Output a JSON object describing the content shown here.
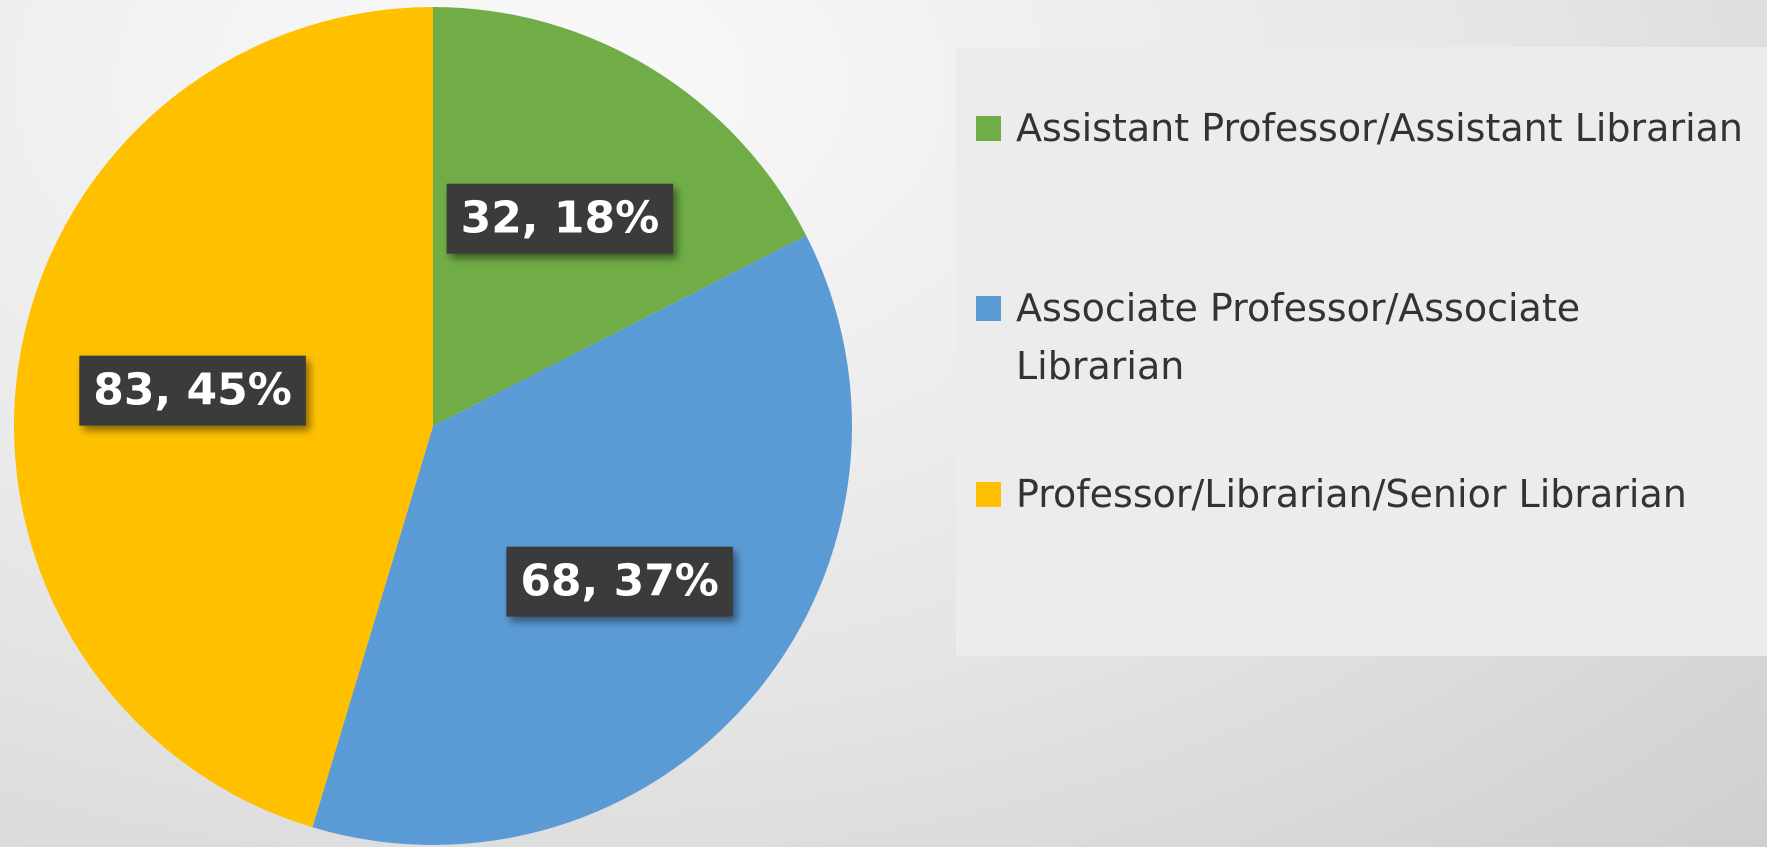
{
  "chart_data": {
    "type": "pie",
    "categories": [
      "Assistant Professor/Assistant Librarian",
      "Associate Professor/Associate Librarian",
      "Professor/Librarian/Senior Librarian"
    ],
    "values": [
      32,
      68,
      83
    ],
    "value_labels": [
      "32, 18%",
      "68, 37%",
      "83, 45%"
    ],
    "colors": [
      "#70ad47",
      "#5b9bd5",
      "#ffc000"
    ],
    "legend": "right"
  }
}
